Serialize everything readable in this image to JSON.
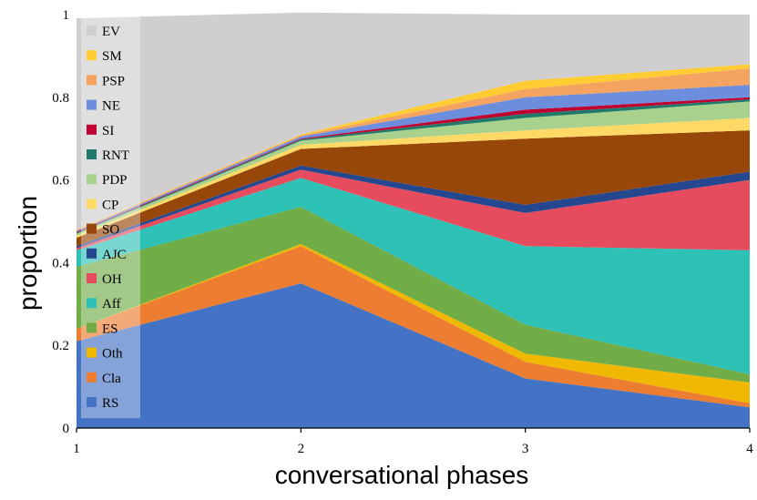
{
  "chart_data": {
    "type": "area",
    "stacked": true,
    "xlabel": "conversational phases",
    "ylabel": "proportion",
    "x": [
      1,
      2,
      3,
      4
    ],
    "xlim": [
      1,
      4
    ],
    "ylim": [
      0,
      1
    ],
    "xticks": [
      "1",
      "2",
      "3",
      "4"
    ],
    "yticks": [
      "0",
      "0.2",
      "0.4",
      "0.6",
      "0.8",
      "1"
    ],
    "grid": false,
    "legend_position": "left-inside",
    "series": [
      {
        "name": "RS",
        "color": "#4472C4",
        "values": [
          0.21,
          0.35,
          0.12,
          0.05
        ]
      },
      {
        "name": "Cla",
        "color": "#ED7D31",
        "values": [
          0.03,
          0.09,
          0.04,
          0.01
        ]
      },
      {
        "name": "Oth",
        "color": "#F0B800",
        "values": [
          0.0,
          0.005,
          0.02,
          0.05
        ]
      },
      {
        "name": "ES",
        "color": "#70AD47",
        "values": [
          0.15,
          0.09,
          0.07,
          0.02
        ]
      },
      {
        "name": "Aff",
        "color": "#2EC1B6",
        "values": [
          0.04,
          0.07,
          0.19,
          0.3
        ]
      },
      {
        "name": "OH",
        "color": "#E74C5E",
        "values": [
          0.005,
          0.02,
          0.08,
          0.17
        ]
      },
      {
        "name": "AJC",
        "color": "#24478F",
        "values": [
          0.005,
          0.01,
          0.02,
          0.02
        ]
      },
      {
        "name": "SO",
        "color": "#974709",
        "values": [
          0.02,
          0.04,
          0.16,
          0.1
        ]
      },
      {
        "name": "CP",
        "color": "#FFD966",
        "values": [
          0.005,
          0.01,
          0.02,
          0.03
        ]
      },
      {
        "name": "PDP",
        "color": "#A9D18E",
        "values": [
          0.005,
          0.01,
          0.03,
          0.04
        ]
      },
      {
        "name": "RNT",
        "color": "#1F7A6C",
        "values": [
          0.002,
          0.003,
          0.01,
          0.005
        ]
      },
      {
        "name": "SI",
        "color": "#C00030",
        "values": [
          0.002,
          0.002,
          0.01,
          0.005
        ]
      },
      {
        "name": "NE",
        "color": "#6C8EDC",
        "values": [
          0.003,
          0.005,
          0.03,
          0.03
        ]
      },
      {
        "name": "PSP",
        "color": "#F4A460",
        "values": [
          0.002,
          0.003,
          0.02,
          0.04
        ]
      },
      {
        "name": "SM",
        "color": "#FFCC33",
        "values": [
          0.001,
          0.002,
          0.02,
          0.01
        ]
      },
      {
        "name": "EV",
        "color": "#D0CECE",
        "values": [
          0.511,
          0.295,
          0.16,
          0.12
        ]
      }
    ]
  }
}
